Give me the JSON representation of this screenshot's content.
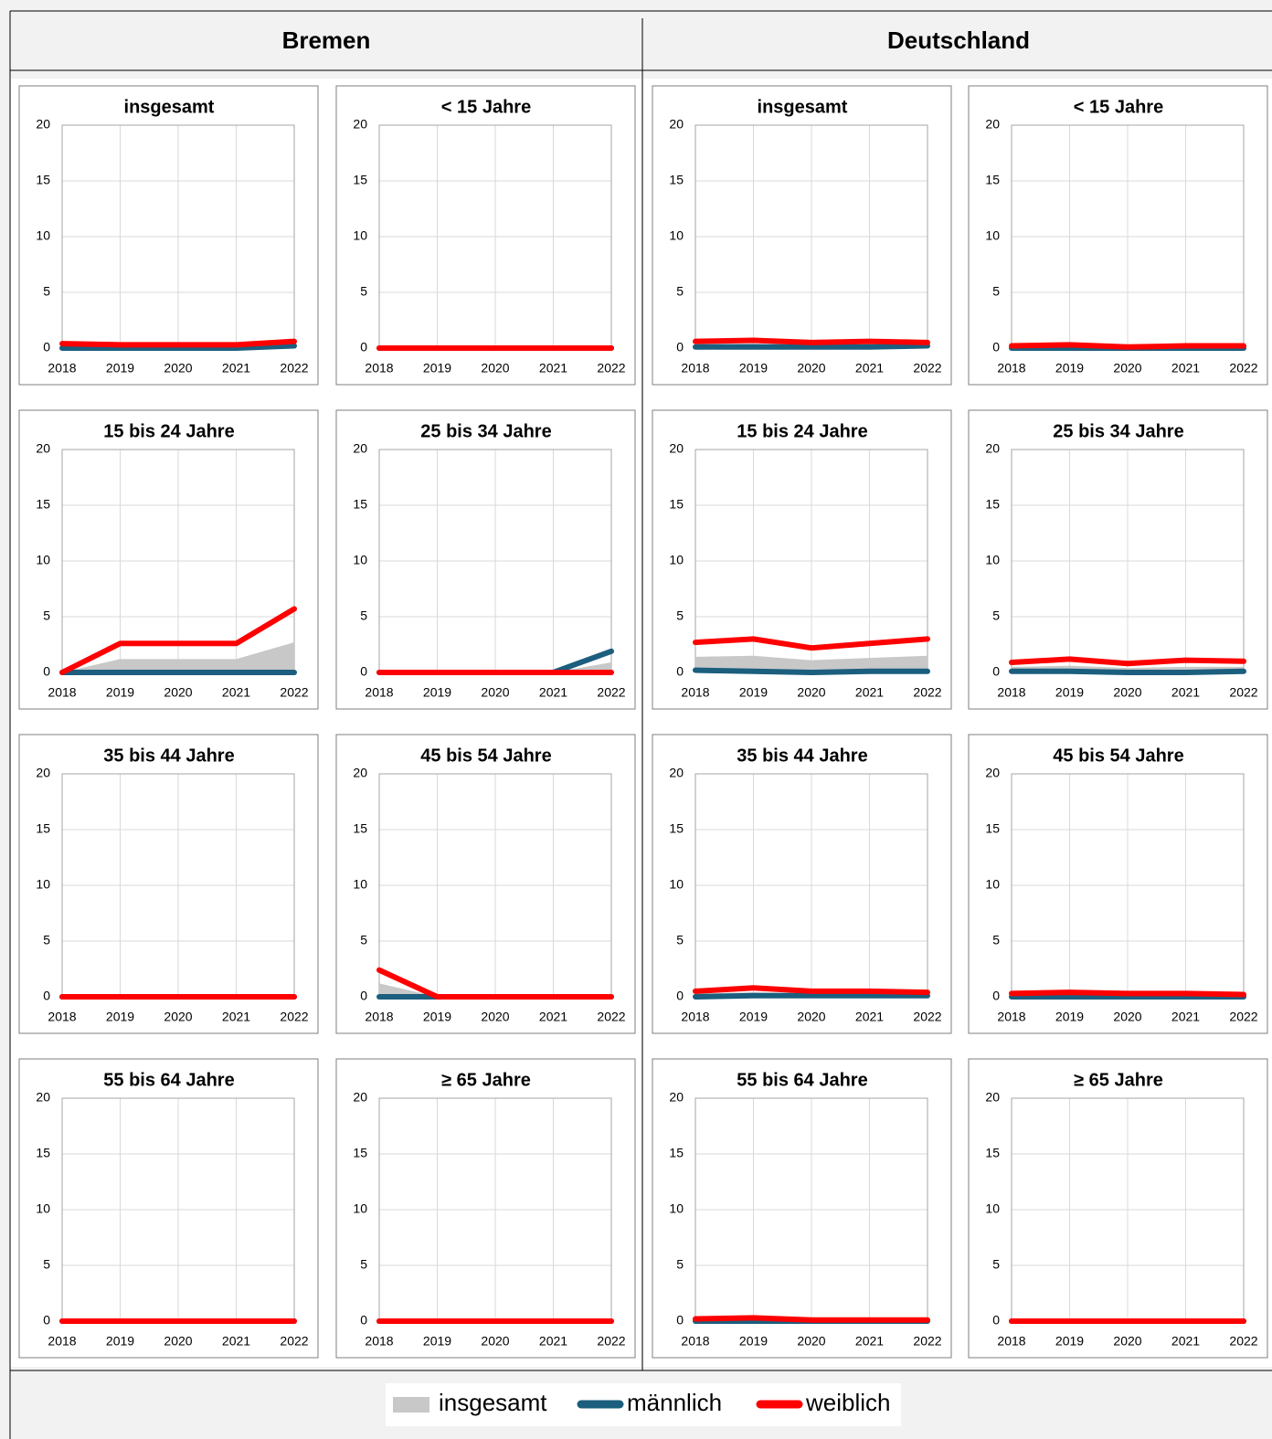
{
  "regions": [
    "Bremen",
    "Deutschland"
  ],
  "chart_data": [
    {
      "type": "line",
      "title": "insgesamt",
      "categories": [
        "2018",
        "2019",
        "2020",
        "2021",
        "2022"
      ],
      "ylim": [
        0,
        20
      ],
      "yticks": [
        0,
        5,
        10,
        15,
        20
      ],
      "grid": true,
      "series": [
        {
          "name": "insgesamt",
          "kind": "area",
          "color": "#c8c8c8",
          "values": [
            0.2,
            0.15,
            0.15,
            0.15,
            0.4
          ]
        },
        {
          "name": "männlich",
          "kind": "line",
          "color": "#1b5e7e",
          "values": [
            0,
            0,
            0,
            0,
            0.2
          ]
        },
        {
          "name": "weiblich",
          "kind": "line",
          "color": "#ff0000",
          "values": [
            0.4,
            0.3,
            0.3,
            0.3,
            0.6
          ]
        }
      ]
    },
    {
      "type": "line",
      "title": "< 15 Jahre",
      "categories": [
        "2018",
        "2019",
        "2020",
        "2021",
        "2022"
      ],
      "ylim": [
        0,
        20
      ],
      "yticks": [
        0,
        5,
        10,
        15,
        20
      ],
      "grid": true,
      "series": [
        {
          "name": "insgesamt",
          "kind": "area",
          "color": "#c8c8c8",
          "values": [
            0,
            0,
            0,
            0,
            0
          ]
        },
        {
          "name": "männlich",
          "kind": "line",
          "color": "#1b5e7e",
          "values": [
            0,
            0,
            0,
            0,
            0
          ]
        },
        {
          "name": "weiblich",
          "kind": "line",
          "color": "#ff0000",
          "values": [
            0,
            0,
            0,
            0,
            0
          ]
        }
      ]
    },
    {
      "type": "line",
      "title": "insgesamt",
      "categories": [
        "2018",
        "2019",
        "2020",
        "2021",
        "2022"
      ],
      "ylim": [
        0,
        20
      ],
      "yticks": [
        0,
        5,
        10,
        15,
        20
      ],
      "grid": true,
      "series": [
        {
          "name": "insgesamt",
          "kind": "area",
          "color": "#c8c8c8",
          "values": [
            0.4,
            0.4,
            0.3,
            0.3,
            0.3
          ]
        },
        {
          "name": "männlich",
          "kind": "line",
          "color": "#1b5e7e",
          "values": [
            0.1,
            0.1,
            0.1,
            0.1,
            0.2
          ]
        },
        {
          "name": "weiblich",
          "kind": "line",
          "color": "#ff0000",
          "values": [
            0.6,
            0.7,
            0.5,
            0.6,
            0.5
          ]
        }
      ]
    },
    {
      "type": "line",
      "title": "< 15 Jahre",
      "categories": [
        "2018",
        "2019",
        "2020",
        "2021",
        "2022"
      ],
      "ylim": [
        0,
        20
      ],
      "yticks": [
        0,
        5,
        10,
        15,
        20
      ],
      "grid": true,
      "series": [
        {
          "name": "insgesamt",
          "kind": "area",
          "color": "#c8c8c8",
          "values": [
            0.1,
            0.1,
            0.1,
            0.1,
            0.1
          ]
        },
        {
          "name": "männlich",
          "kind": "line",
          "color": "#1b5e7e",
          "values": [
            0,
            0,
            0,
            0,
            0
          ]
        },
        {
          "name": "weiblich",
          "kind": "line",
          "color": "#ff0000",
          "values": [
            0.2,
            0.3,
            0.1,
            0.2,
            0.2
          ]
        }
      ]
    },
    {
      "type": "line",
      "title": "15 bis 24 Jahre",
      "categories": [
        "2018",
        "2019",
        "2020",
        "2021",
        "2022"
      ],
      "ylim": [
        0,
        20
      ],
      "yticks": [
        0,
        5,
        10,
        15,
        20
      ],
      "grid": true,
      "series": [
        {
          "name": "insgesamt",
          "kind": "area",
          "color": "#c8c8c8",
          "values": [
            0,
            1.2,
            1.2,
            1.2,
            2.7
          ]
        },
        {
          "name": "männlich",
          "kind": "line",
          "color": "#1b5e7e",
          "values": [
            0,
            0,
            0,
            0,
            0
          ]
        },
        {
          "name": "weiblich",
          "kind": "line",
          "color": "#ff0000",
          "values": [
            0,
            2.6,
            2.6,
            2.6,
            5.7
          ]
        }
      ]
    },
    {
      "type": "line",
      "title": "25 bis 34 Jahre",
      "categories": [
        "2018",
        "2019",
        "2020",
        "2021",
        "2022"
      ],
      "ylim": [
        0,
        20
      ],
      "yticks": [
        0,
        5,
        10,
        15,
        20
      ],
      "grid": true,
      "series": [
        {
          "name": "insgesamt",
          "kind": "area",
          "color": "#c8c8c8",
          "values": [
            0,
            0,
            0,
            0,
            0.9
          ]
        },
        {
          "name": "männlich",
          "kind": "line",
          "color": "#1b5e7e",
          "values": [
            0,
            0,
            0,
            0,
            1.9
          ]
        },
        {
          "name": "weiblich",
          "kind": "line",
          "color": "#ff0000",
          "values": [
            0,
            0,
            0,
            0,
            0
          ]
        }
      ]
    },
    {
      "type": "line",
      "title": "15 bis 24 Jahre",
      "categories": [
        "2018",
        "2019",
        "2020",
        "2021",
        "2022"
      ],
      "ylim": [
        0,
        20
      ],
      "yticks": [
        0,
        5,
        10,
        15,
        20
      ],
      "grid": true,
      "series": [
        {
          "name": "insgesamt",
          "kind": "area",
          "color": "#c8c8c8",
          "values": [
            1.4,
            1.5,
            1.1,
            1.3,
            1.5
          ]
        },
        {
          "name": "männlich",
          "kind": "line",
          "color": "#1b5e7e",
          "values": [
            0.2,
            0.1,
            0,
            0.1,
            0.1
          ]
        },
        {
          "name": "weiblich",
          "kind": "line",
          "color": "#ff0000",
          "values": [
            2.7,
            3.0,
            2.2,
            2.6,
            3.0
          ]
        }
      ]
    },
    {
      "type": "line",
      "title": "25 bis 34 Jahre",
      "categories": [
        "2018",
        "2019",
        "2020",
        "2021",
        "2022"
      ],
      "ylim": [
        0,
        20
      ],
      "yticks": [
        0,
        5,
        10,
        15,
        20
      ],
      "grid": true,
      "series": [
        {
          "name": "insgesamt",
          "kind": "area",
          "color": "#c8c8c8",
          "values": [
            0.5,
            0.6,
            0.4,
            0.5,
            0.5
          ]
        },
        {
          "name": "männlich",
          "kind": "line",
          "color": "#1b5e7e",
          "values": [
            0.1,
            0.1,
            0,
            0,
            0.1
          ]
        },
        {
          "name": "weiblich",
          "kind": "line",
          "color": "#ff0000",
          "values": [
            0.9,
            1.2,
            0.8,
            1.1,
            1.0
          ]
        }
      ]
    },
    {
      "type": "line",
      "title": "35 bis 44 Jahre",
      "categories": [
        "2018",
        "2019",
        "2020",
        "2021",
        "2022"
      ],
      "ylim": [
        0,
        20
      ],
      "yticks": [
        0,
        5,
        10,
        15,
        20
      ],
      "grid": true,
      "series": [
        {
          "name": "insgesamt",
          "kind": "area",
          "color": "#c8c8c8",
          "values": [
            0,
            0,
            0,
            0,
            0
          ]
        },
        {
          "name": "männlich",
          "kind": "line",
          "color": "#1b5e7e",
          "values": [
            0,
            0,
            0,
            0,
            0
          ]
        },
        {
          "name": "weiblich",
          "kind": "line",
          "color": "#ff0000",
          "values": [
            0,
            0,
            0,
            0,
            0
          ]
        }
      ]
    },
    {
      "type": "line",
      "title": "45 bis 54 Jahre",
      "categories": [
        "2018",
        "2019",
        "2020",
        "2021",
        "2022"
      ],
      "ylim": [
        0,
        20
      ],
      "yticks": [
        0,
        5,
        10,
        15,
        20
      ],
      "grid": true,
      "series": [
        {
          "name": "insgesamt",
          "kind": "area",
          "color": "#c8c8c8",
          "values": [
            1.2,
            0,
            0,
            0,
            0
          ]
        },
        {
          "name": "männlich",
          "kind": "line",
          "color": "#1b5e7e",
          "values": [
            0,
            0,
            0,
            0,
            0
          ]
        },
        {
          "name": "weiblich",
          "kind": "line",
          "color": "#ff0000",
          "values": [
            2.4,
            0,
            0,
            0,
            0
          ]
        }
      ]
    },
    {
      "type": "line",
      "title": "35 bis 44 Jahre",
      "categories": [
        "2018",
        "2019",
        "2020",
        "2021",
        "2022"
      ],
      "ylim": [
        0,
        20
      ],
      "yticks": [
        0,
        5,
        10,
        15,
        20
      ],
      "grid": true,
      "series": [
        {
          "name": "insgesamt",
          "kind": "area",
          "color": "#c8c8c8",
          "values": [
            0.3,
            0.4,
            0.3,
            0.3,
            0.2
          ]
        },
        {
          "name": "männlich",
          "kind": "line",
          "color": "#1b5e7e",
          "values": [
            0,
            0.1,
            0.1,
            0.1,
            0.1
          ]
        },
        {
          "name": "weiblich",
          "kind": "line",
          "color": "#ff0000",
          "values": [
            0.5,
            0.8,
            0.5,
            0.5,
            0.4
          ]
        }
      ]
    },
    {
      "type": "line",
      "title": "45 bis 54 Jahre",
      "categories": [
        "2018",
        "2019",
        "2020",
        "2021",
        "2022"
      ],
      "ylim": [
        0,
        20
      ],
      "yticks": [
        0,
        5,
        10,
        15,
        20
      ],
      "grid": true,
      "series": [
        {
          "name": "insgesamt",
          "kind": "area",
          "color": "#c8c8c8",
          "values": [
            0.2,
            0.2,
            0.2,
            0.2,
            0.1
          ]
        },
        {
          "name": "männlich",
          "kind": "line",
          "color": "#1b5e7e",
          "values": [
            0,
            0,
            0,
            0,
            0
          ]
        },
        {
          "name": "weiblich",
          "kind": "line",
          "color": "#ff0000",
          "values": [
            0.3,
            0.4,
            0.3,
            0.3,
            0.2
          ]
        }
      ]
    },
    {
      "type": "line",
      "title": "55 bis 64 Jahre",
      "categories": [
        "2018",
        "2019",
        "2020",
        "2021",
        "2022"
      ],
      "ylim": [
        0,
        20
      ],
      "yticks": [
        0,
        5,
        10,
        15,
        20
      ],
      "grid": true,
      "series": [
        {
          "name": "insgesamt",
          "kind": "area",
          "color": "#c8c8c8",
          "values": [
            0,
            0,
            0,
            0,
            0
          ]
        },
        {
          "name": "männlich",
          "kind": "line",
          "color": "#1b5e7e",
          "values": [
            0,
            0,
            0,
            0,
            0
          ]
        },
        {
          "name": "weiblich",
          "kind": "line",
          "color": "#ff0000",
          "values": [
            0,
            0,
            0,
            0,
            0
          ]
        }
      ]
    },
    {
      "type": "line",
      "title": "≥ 65 Jahre",
      "categories": [
        "2018",
        "2019",
        "2020",
        "2021",
        "2022"
      ],
      "ylim": [
        0,
        20
      ],
      "yticks": [
        0,
        5,
        10,
        15,
        20
      ],
      "grid": true,
      "series": [
        {
          "name": "insgesamt",
          "kind": "area",
          "color": "#c8c8c8",
          "values": [
            0,
            0,
            0,
            0,
            0
          ]
        },
        {
          "name": "männlich",
          "kind": "line",
          "color": "#1b5e7e",
          "values": [
            0,
            0,
            0,
            0,
            0
          ]
        },
        {
          "name": "weiblich",
          "kind": "line",
          "color": "#ff0000",
          "values": [
            0,
            0,
            0,
            0,
            0
          ]
        }
      ]
    },
    {
      "type": "line",
      "title": "55 bis 64 Jahre",
      "categories": [
        "2018",
        "2019",
        "2020",
        "2021",
        "2022"
      ],
      "ylim": [
        0,
        20
      ],
      "yticks": [
        0,
        5,
        10,
        15,
        20
      ],
      "grid": true,
      "series": [
        {
          "name": "insgesamt",
          "kind": "area",
          "color": "#c8c8c8",
          "values": [
            0.1,
            0.1,
            0.1,
            0.1,
            0.1
          ]
        },
        {
          "name": "männlich",
          "kind": "line",
          "color": "#1b5e7e",
          "values": [
            0,
            0,
            0,
            0,
            0
          ]
        },
        {
          "name": "weiblich",
          "kind": "line",
          "color": "#ff0000",
          "values": [
            0.2,
            0.3,
            0.1,
            0.1,
            0.1
          ]
        }
      ]
    },
    {
      "type": "line",
      "title": "≥ 65 Jahre",
      "categories": [
        "2018",
        "2019",
        "2020",
        "2021",
        "2022"
      ],
      "ylim": [
        0,
        20
      ],
      "yticks": [
        0,
        5,
        10,
        15,
        20
      ],
      "grid": true,
      "series": [
        {
          "name": "insgesamt",
          "kind": "area",
          "color": "#c8c8c8",
          "values": [
            0,
            0,
            0,
            0,
            0
          ]
        },
        {
          "name": "männlich",
          "kind": "line",
          "color": "#1b5e7e",
          "values": [
            0,
            0,
            0,
            0,
            0
          ]
        },
        {
          "name": "weiblich",
          "kind": "line",
          "color": "#ff0000",
          "values": [
            0,
            0,
            0,
            0,
            0
          ]
        }
      ]
    }
  ]
}
